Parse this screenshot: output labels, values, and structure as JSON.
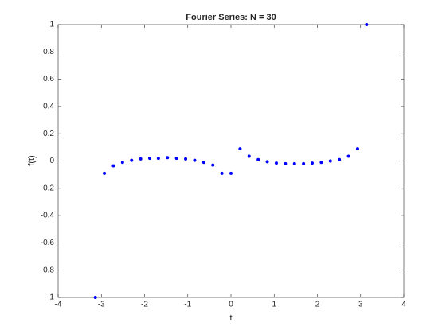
{
  "chart_data": {
    "type": "scatter",
    "title": "Fourier Series: N = 30",
    "x_label": "t",
    "y_label": "f(t)",
    "color": "#0000ff",
    "x": [
      -3.14,
      -2.93,
      -2.72,
      -2.51,
      -2.3,
      -2.09,
      -1.88,
      -1.68,
      -1.47,
      -1.26,
      -1.05,
      -0.84,
      -0.63,
      -0.42,
      -0.21,
      0,
      0.21,
      0.42,
      0.63,
      0.84,
      1.05,
      1.26,
      1.47,
      1.68,
      1.88,
      2.09,
      2.3,
      2.51,
      2.72,
      2.93,
      3.14
    ],
    "values": [
      -1,
      -0.09,
      -0.035,
      -0.01,
      0.005,
      0.015,
      0.02,
      0.02,
      0.025,
      0.02,
      0.015,
      0.005,
      -0.01,
      -0.03,
      -0.09,
      -0.09,
      0.09,
      0.035,
      0.01,
      -0.005,
      -0.015,
      -0.02,
      -0.02,
      -0.02,
      -0.015,
      -0.01,
      0,
      0.01,
      0.035,
      0.09,
      1
    ],
    "xlim": [
      -4,
      4
    ],
    "xticks": [
      -4,
      -3,
      -2,
      -1,
      0,
      1,
      2,
      3,
      4
    ],
    "ylim": [
      -1,
      1
    ],
    "yticks": [
      -1,
      -0.8,
      -0.6,
      -0.4,
      -0.2,
      0,
      0.2,
      0.4,
      0.6,
      0.8,
      1
    ]
  }
}
